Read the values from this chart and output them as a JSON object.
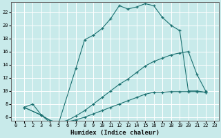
{
  "xlabel": "Humidex (Indice chaleur)",
  "bg_color": "#c8eaea",
  "grid_color": "#ffffff",
  "line_color": "#1a7070",
  "xlim": [
    -0.5,
    23.5
  ],
  "ylim": [
    5.5,
    23.5
  ],
  "xticks": [
    0,
    1,
    2,
    3,
    4,
    5,
    6,
    7,
    8,
    9,
    10,
    11,
    12,
    13,
    14,
    15,
    16,
    17,
    18,
    19,
    20,
    21,
    22,
    23
  ],
  "yticks": [
    6,
    8,
    10,
    12,
    14,
    16,
    18,
    20,
    22
  ],
  "line1_x": [
    1,
    2,
    3,
    4,
    5,
    7,
    8,
    9,
    10,
    11,
    12,
    13,
    14,
    15,
    16,
    17,
    18,
    19,
    20,
    21,
    22
  ],
  "line1_y": [
    7.5,
    8.0,
    6.3,
    5.2,
    5.1,
    13.5,
    17.8,
    18.5,
    19.5,
    21.0,
    23.0,
    22.5,
    22.8,
    23.3,
    23.0,
    21.2,
    20.0,
    19.2,
    10.0,
    10.0,
    9.8
  ],
  "line2_x": [
    1,
    3,
    4,
    5,
    6,
    7,
    8,
    9,
    10,
    11,
    12,
    13,
    14,
    15,
    16,
    17,
    18,
    19,
    20,
    21,
    22
  ],
  "line2_y": [
    7.5,
    6.3,
    5.5,
    5.2,
    5.5,
    6.2,
    7.0,
    8.0,
    9.0,
    10.0,
    11.0,
    11.8,
    12.8,
    13.8,
    14.5,
    15.0,
    15.5,
    15.8,
    16.0,
    12.5,
    10.0
  ],
  "line3_x": [
    1,
    3,
    4,
    5,
    6,
    7,
    8,
    9,
    10,
    11,
    12,
    13,
    14,
    15,
    16,
    17,
    18,
    19,
    20,
    21,
    22
  ],
  "line3_y": [
    7.5,
    6.3,
    5.5,
    5.2,
    5.3,
    5.6,
    6.0,
    6.5,
    7.0,
    7.5,
    8.0,
    8.5,
    9.0,
    9.5,
    9.8,
    9.8,
    9.9,
    9.9,
    9.9,
    9.9,
    9.8
  ]
}
